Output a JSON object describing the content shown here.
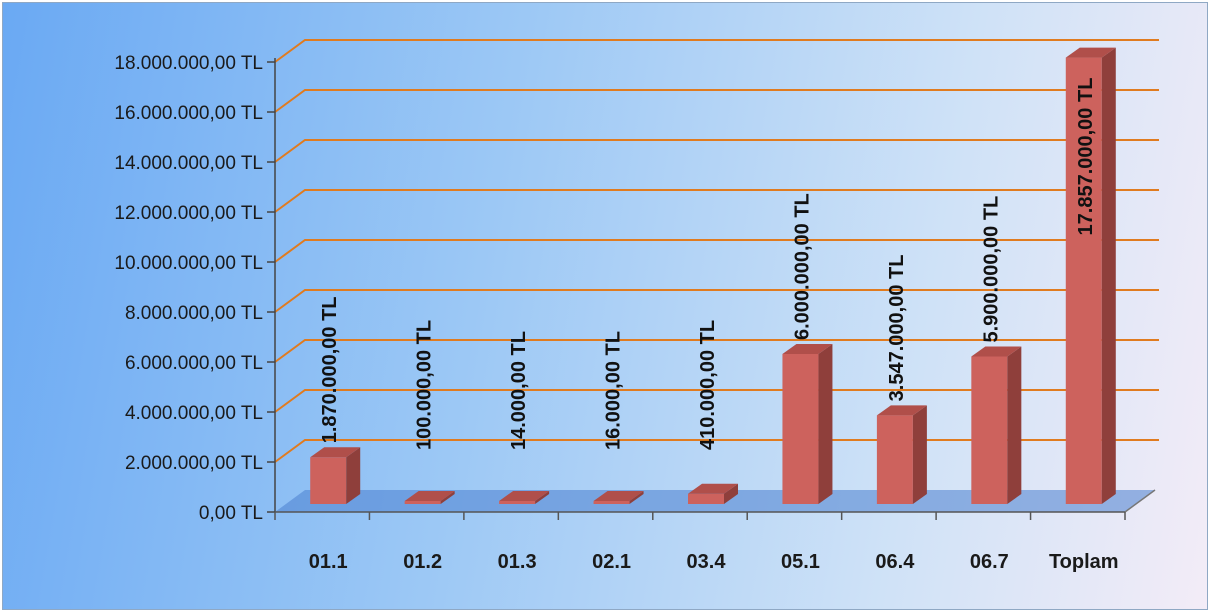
{
  "chart_data": {
    "type": "bar",
    "title": "",
    "xlabel": "",
    "ylabel": "",
    "categories": [
      "01.1",
      "01.2",
      "01.3",
      "02.1",
      "03.4",
      "05.1",
      "06.4",
      "06.7",
      "Toplam"
    ],
    "values": [
      1870000,
      100000,
      14000,
      16000,
      410000,
      6000000,
      3547000,
      5900000,
      17857000
    ],
    "data_labels": [
      "1.870.000,00 TL",
      "100.000,00 TL",
      "14.000,00 TL",
      "16.000,00 TL",
      "410.000,00 TL",
      "6.000.000,00 TL",
      "3.547.000,00 TL",
      "5.900.000,00 TL",
      "17.857.000,00 TL"
    ],
    "ylim": [
      0,
      18000000
    ],
    "yticks": [
      {
        "value": 0,
        "label": "0,00 TL"
      },
      {
        "value": 2000000,
        "label": "2.000.000,00 TL"
      },
      {
        "value": 4000000,
        "label": "4.000.000,00 TL"
      },
      {
        "value": 6000000,
        "label": "6.000.000,00 TL"
      },
      {
        "value": 8000000,
        "label": "8.000.000,00 TL"
      },
      {
        "value": 10000000,
        "label": "10.000.000,00 TL"
      },
      {
        "value": 12000000,
        "label": "12.000.000,00 TL"
      },
      {
        "value": 14000000,
        "label": "14.000.000,00 TL"
      },
      {
        "value": 16000000,
        "label": "16.000.000,00 TL"
      },
      {
        "value": 18000000,
        "label": "18.000.000,00 TL"
      }
    ],
    "grid": true,
    "legend": "none",
    "style": "3d-column",
    "colors": {
      "bar_front": "#cd625d",
      "bar_side": "#8f3f3b",
      "bar_top": "#b04f4a",
      "gridline": "#e07b1f",
      "floor": "#4b7fd0"
    }
  }
}
